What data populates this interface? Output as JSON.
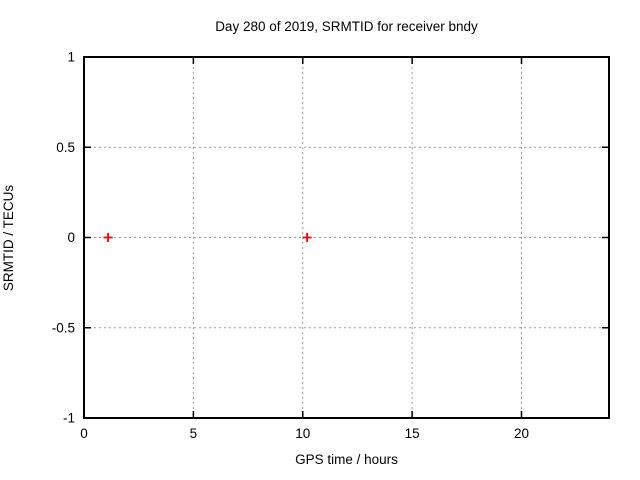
{
  "page": {
    "background_color": "#ffffff",
    "text_color": "#000000"
  },
  "chart_data": {
    "type": "scatter",
    "title": "Day 280 of 2019, SRMTID for receiver bndy",
    "xlabel": "GPS time / hours",
    "ylabel": "SRMTID / TECUs",
    "xlim": [
      0,
      24
    ],
    "ylim": [
      -1,
      1
    ],
    "xticks": [
      0,
      5,
      10,
      15,
      20
    ],
    "yticks": [
      -1,
      -0.5,
      0,
      0.5,
      1
    ],
    "grid": true,
    "legend": "none",
    "styles": {
      "border_color": "#000000",
      "grid_color": "#9a9a9a",
      "marker_color": "#ff0000",
      "marker_shape": "plus"
    },
    "series": [
      {
        "name": "srmtid",
        "marker": "plus",
        "color": "#ff0000",
        "points": [
          [
            1.1,
            0.0
          ],
          [
            10.2,
            0.0
          ]
        ]
      }
    ]
  }
}
